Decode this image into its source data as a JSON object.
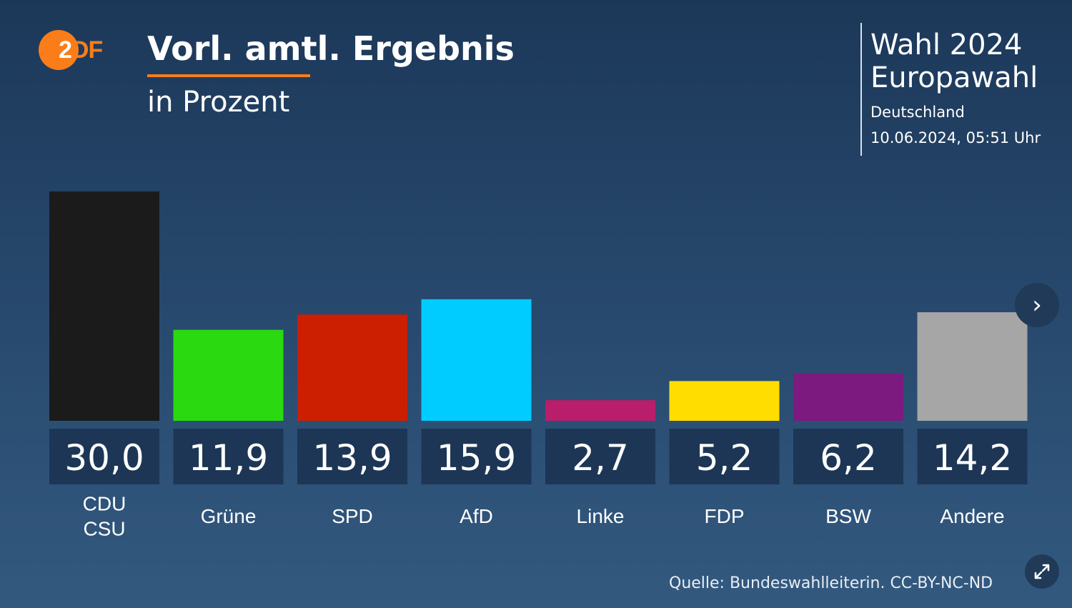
{
  "logo": {
    "text_first": "2",
    "text_rest": "DF"
  },
  "header": {
    "title": "Vorl. amtl. Ergebnis",
    "subtitle": "in Prozent"
  },
  "info": {
    "line1": "Wahl 2024",
    "line2": "Europawahl",
    "line3": "Deutschland",
    "line4": "10.06.2024, 05:51 Uhr"
  },
  "source": "Quelle: Bundeswahlleiterin. CC-BY-NC-ND",
  "icons": {
    "next": "chevron-right-icon",
    "fullscreen": "expand-icon"
  },
  "chart_data": {
    "type": "bar",
    "title": "Vorl. amtl. Ergebnis",
    "subtitle": "in Prozent",
    "categories": [
      [
        "CDU",
        "CSU"
      ],
      [
        "Grüne"
      ],
      [
        "SPD"
      ],
      [
        "AfD"
      ],
      [
        "Linke"
      ],
      [
        "FDP"
      ],
      [
        "BSW"
      ],
      [
        "Andere"
      ]
    ],
    "values": [
      30.0,
      11.9,
      13.9,
      15.9,
      2.7,
      5.2,
      6.2,
      14.2
    ],
    "value_labels": [
      "30,0",
      "11,9",
      "13,9",
      "15,9",
      "2,7",
      "5,2",
      "6,2",
      "14,2"
    ],
    "colors": [
      "#1b1b1b",
      "#2ad90f",
      "#cc1e00",
      "#00ccff",
      "#b81e6b",
      "#ffdd00",
      "#7c1a80",
      "#a6a6a6"
    ],
    "ylim": [
      0,
      30
    ],
    "grid": false,
    "legend": "none"
  }
}
